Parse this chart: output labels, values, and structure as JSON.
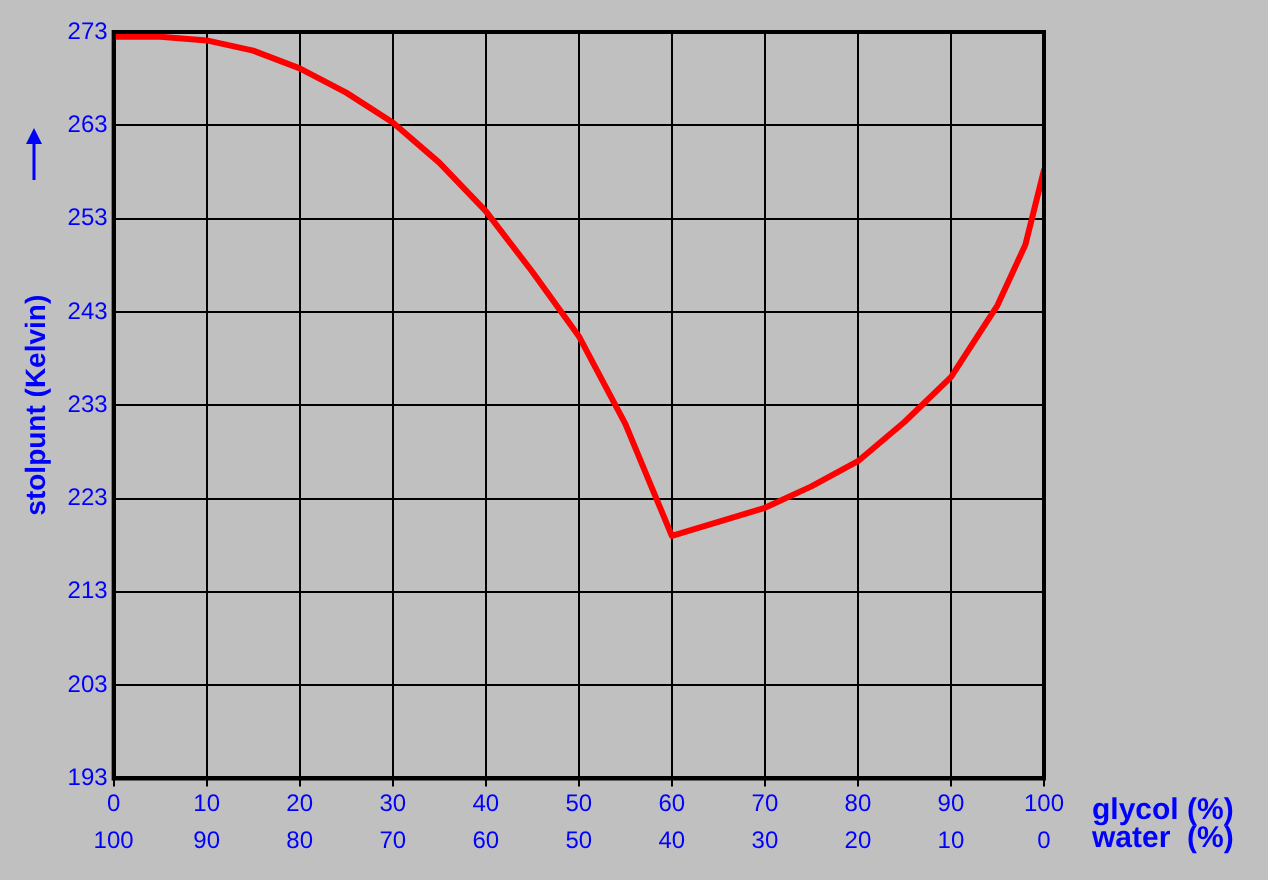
{
  "chart_data": {
    "type": "line",
    "xlabel": "glycol (%)",
    "x2label": "water  (%)",
    "ylabel": "stolpunt (Kelvin)",
    "x": [
      0,
      5,
      10,
      15,
      20,
      25,
      30,
      35,
      40,
      45,
      50,
      55,
      58,
      60,
      65,
      70,
      75,
      80,
      85,
      90,
      95,
      98,
      100
    ],
    "series": [
      {
        "color": "#ff0000",
        "values": [
          272.5,
          272.5,
          272.1,
          271,
          269.1,
          266.5,
          263.3,
          259,
          253.8,
          247.3,
          240.4,
          231,
          223.8,
          219,
          220.5,
          222,
          224.3,
          227,
          231.2,
          236,
          243.7,
          250.2,
          258.2
        ]
      }
    ],
    "xlim": [
      0,
      100
    ],
    "xticks": [
      0,
      10,
      20,
      30,
      40,
      50,
      60,
      70,
      80,
      90,
      100
    ],
    "x2lim": [
      100,
      0
    ],
    "x2ticks": [
      100,
      90,
      80,
      70,
      60,
      50,
      40,
      30,
      20,
      10,
      0
    ],
    "ylim": [
      193,
      273
    ],
    "yticks": [
      193,
      203,
      213,
      223,
      233,
      243,
      253,
      263,
      273
    ],
    "grid": true,
    "legend": false,
    "marker": "none",
    "line_style": "solid"
  }
}
